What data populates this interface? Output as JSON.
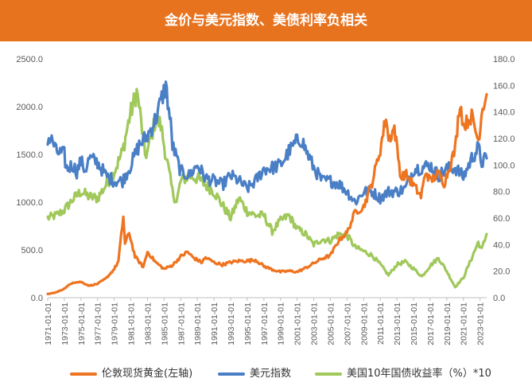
{
  "title": "金价与美元指数、美债利率负相关",
  "colors": {
    "header": "#e8731e",
    "gold": "#ee7420",
    "usd": "#4a7fc6",
    "yield": "#a0c85a"
  },
  "legend": [
    {
      "label": "伦敦现货黄金(左轴)",
      "color": "#ee7420"
    },
    {
      "label": "美元指数",
      "color": "#4a7fc6"
    },
    {
      "label": "美国10年国债收益率（%）*10",
      "color": "#a0c85a"
    }
  ],
  "chart_data": {
    "type": "line",
    "title": "金价与美元指数、美债利率负相关",
    "x_range": [
      "1971-01",
      "2023-10"
    ],
    "y_left": {
      "min": 0,
      "max": 2500,
      "ticks": [
        "0.0",
        "500.0",
        "1000.0",
        "1500.0",
        "2000.0",
        "2500.0"
      ]
    },
    "y_right": {
      "min": 0,
      "max": 180,
      "ticks": [
        "0.0",
        "20.0",
        "40.0",
        "60.0",
        "80.0",
        "100.0",
        "120.0",
        "140.0",
        "160.0",
        "180.0"
      ]
    },
    "x_ticks": [
      "1971-01-01",
      "1973-01-01",
      "1975-01-01",
      "1977-01-01",
      "1979-01-01",
      "1981-01-01",
      "1983-01-01",
      "1985-01-01",
      "1987-01-01",
      "1989-01-01",
      "1991-01-01",
      "1993-01-01",
      "1995-01-01",
      "1997-01-01",
      "1999-01-01",
      "2001-01-01",
      "2003-01-01",
      "2005-01-01",
      "2007-01-01",
      "2009-01-01",
      "2011-01-01",
      "2013-01-01",
      "2015-01-01",
      "2017-01-01",
      "2019-01-01",
      "2021-01-01",
      "2023-01-01"
    ],
    "series": [
      {
        "name": "伦敦现货黄金(左轴)",
        "axis": "left",
        "color": "#ee7420",
        "points": [
          [
            1971,
            38
          ],
          [
            1972,
            55
          ],
          [
            1973,
            95
          ],
          [
            1974,
            160
          ],
          [
            1975,
            165
          ],
          [
            1976,
            125
          ],
          [
            1977,
            145
          ],
          [
            1978,
            200
          ],
          [
            1979,
            300
          ],
          [
            1979.5,
            380
          ],
          [
            1980.1,
            850
          ],
          [
            1980.3,
            560
          ],
          [
            1980.8,
            680
          ],
          [
            1981.5,
            430
          ],
          [
            1982.5,
            320
          ],
          [
            1983,
            480
          ],
          [
            1984,
            370
          ],
          [
            1985,
            300
          ],
          [
            1986,
            340
          ],
          [
            1987,
            430
          ],
          [
            1987.8,
            480
          ],
          [
            1988.5,
            420
          ],
          [
            1989.5,
            370
          ],
          [
            1990,
            420
          ],
          [
            1991,
            370
          ],
          [
            1992,
            345
          ],
          [
            1993,
            370
          ],
          [
            1994,
            385
          ],
          [
            1995,
            385
          ],
          [
            1996,
            395
          ],
          [
            1997,
            330
          ],
          [
            1998,
            295
          ],
          [
            1999,
            270
          ],
          [
            2000,
            280
          ],
          [
            2001,
            270
          ],
          [
            2002,
            310
          ],
          [
            2003,
            360
          ],
          [
            2004,
            410
          ],
          [
            2005,
            440
          ],
          [
            2006,
            600
          ],
          [
            2007,
            680
          ],
          [
            2008,
            900
          ],
          [
            2009,
            950
          ],
          [
            2010,
            1200
          ],
          [
            2011,
            1550
          ],
          [
            2011.7,
            1900
          ],
          [
            2012,
            1650
          ],
          [
            2012.7,
            1780
          ],
          [
            2013.5,
            1250
          ],
          [
            2014,
            1300
          ],
          [
            2015,
            1180
          ],
          [
            2015.9,
            1060
          ],
          [
            2016.5,
            1330
          ],
          [
            2017,
            1220
          ],
          [
            2018,
            1300
          ],
          [
            2018.7,
            1200
          ],
          [
            2019.5,
            1420
          ],
          [
            2020,
            1550
          ],
          [
            2020.6,
            2060
          ],
          [
            2021,
            1800
          ],
          [
            2022,
            1900
          ],
          [
            2022.8,
            1640
          ],
          [
            2023.3,
            2000
          ],
          [
            2023.8,
            2130
          ]
        ]
      },
      {
        "name": "美元指数",
        "axis": "right",
        "color": "#4a7fc6",
        "points": [
          [
            1971,
            120
          ],
          [
            1971.6,
            118
          ],
          [
            1972,
            110
          ],
          [
            1973,
            108
          ],
          [
            1973.2,
            97
          ],
          [
            1974,
            100
          ],
          [
            1974.5,
            95
          ],
          [
            1975,
            103
          ],
          [
            1975.5,
            96
          ],
          [
            1976,
            105
          ],
          [
            1977,
            102
          ],
          [
            1978,
            92
          ],
          [
            1979,
            88
          ],
          [
            1980,
            88
          ],
          [
            1981,
            100
          ],
          [
            1982,
            115
          ],
          [
            1983,
            122
          ],
          [
            1984,
            135
          ],
          [
            1985.2,
            160
          ],
          [
            1985.8,
            130
          ],
          [
            1986,
            115
          ],
          [
            1987,
            95
          ],
          [
            1988,
            92
          ],
          [
            1989,
            100
          ],
          [
            1990,
            90
          ],
          [
            1991,
            88
          ],
          [
            1992,
            85
          ],
          [
            1993,
            92
          ],
          [
            1994,
            88
          ],
          [
            1995,
            82
          ],
          [
            1996,
            88
          ],
          [
            1997,
            97
          ],
          [
            1998,
            98
          ],
          [
            1999,
            100
          ],
          [
            2000,
            110
          ],
          [
            2001,
            118
          ],
          [
            2001.5,
            120
          ],
          [
            2002,
            112
          ],
          [
            2003,
            98
          ],
          [
            2004,
            88
          ],
          [
            2005,
            88
          ],
          [
            2006,
            86
          ],
          [
            2007,
            80
          ],
          [
            2008,
            72
          ],
          [
            2009,
            80
          ],
          [
            2010,
            80
          ],
          [
            2011,
            75
          ],
          [
            2012,
            80
          ],
          [
            2013,
            80
          ],
          [
            2014,
            82
          ],
          [
            2015,
            97
          ],
          [
            2016,
            98
          ],
          [
            2017,
            100
          ],
          [
            2018,
            92
          ],
          [
            2019,
            97
          ],
          [
            2020,
            98
          ],
          [
            2021,
            91
          ],
          [
            2022,
            105
          ],
          [
            2022.8,
            113
          ],
          [
            2023.2,
            102
          ],
          [
            2023.8,
            105
          ]
        ]
      },
      {
        "name": "美国10年国债收益率（%）*10",
        "axis": "right",
        "color": "#a0c85a",
        "points": [
          [
            1971,
            60
          ],
          [
            1972,
            62
          ],
          [
            1973,
            66
          ],
          [
            1974,
            74
          ],
          [
            1975,
            80
          ],
          [
            1976,
            76
          ],
          [
            1977,
            75
          ],
          [
            1978,
            85
          ],
          [
            1979,
            95
          ],
          [
            1980,
            110
          ],
          [
            1980.8,
            135
          ],
          [
            1981.7,
            155
          ],
          [
            1982,
            145
          ],
          [
            1982.7,
            108
          ],
          [
            1983,
            110
          ],
          [
            1984,
            135
          ],
          [
            1984.6,
            130
          ],
          [
            1985,
            115
          ],
          [
            1986,
            80
          ],
          [
            1986.5,
            72
          ],
          [
            1987,
            88
          ],
          [
            1988,
            92
          ],
          [
            1989,
            90
          ],
          [
            1990,
            85
          ],
          [
            1991,
            80
          ],
          [
            1992,
            70
          ],
          [
            1993,
            60
          ],
          [
            1994,
            75
          ],
          [
            1995,
            65
          ],
          [
            1996,
            62
          ],
          [
            1997,
            62
          ],
          [
            1998,
            50
          ],
          [
            1999,
            58
          ],
          [
            2000,
            62
          ],
          [
            2001,
            52
          ],
          [
            2002,
            48
          ],
          [
            2003,
            40
          ],
          [
            2004,
            44
          ],
          [
            2005,
            43
          ],
          [
            2006,
            48
          ],
          [
            2007,
            47
          ],
          [
            2008,
            38
          ],
          [
            2009,
            35
          ],
          [
            2010,
            32
          ],
          [
            2011,
            25
          ],
          [
            2012,
            17
          ],
          [
            2013,
            25
          ],
          [
            2014,
            27
          ],
          [
            2015,
            22
          ],
          [
            2016,
            16
          ],
          [
            2017,
            24
          ],
          [
            2018,
            30
          ],
          [
            2019,
            20
          ],
          [
            2020,
            8
          ],
          [
            2021,
            15
          ],
          [
            2022,
            30
          ],
          [
            2022.8,
            42
          ],
          [
            2023.2,
            36
          ],
          [
            2023.8,
            48
          ]
        ]
      }
    ]
  }
}
